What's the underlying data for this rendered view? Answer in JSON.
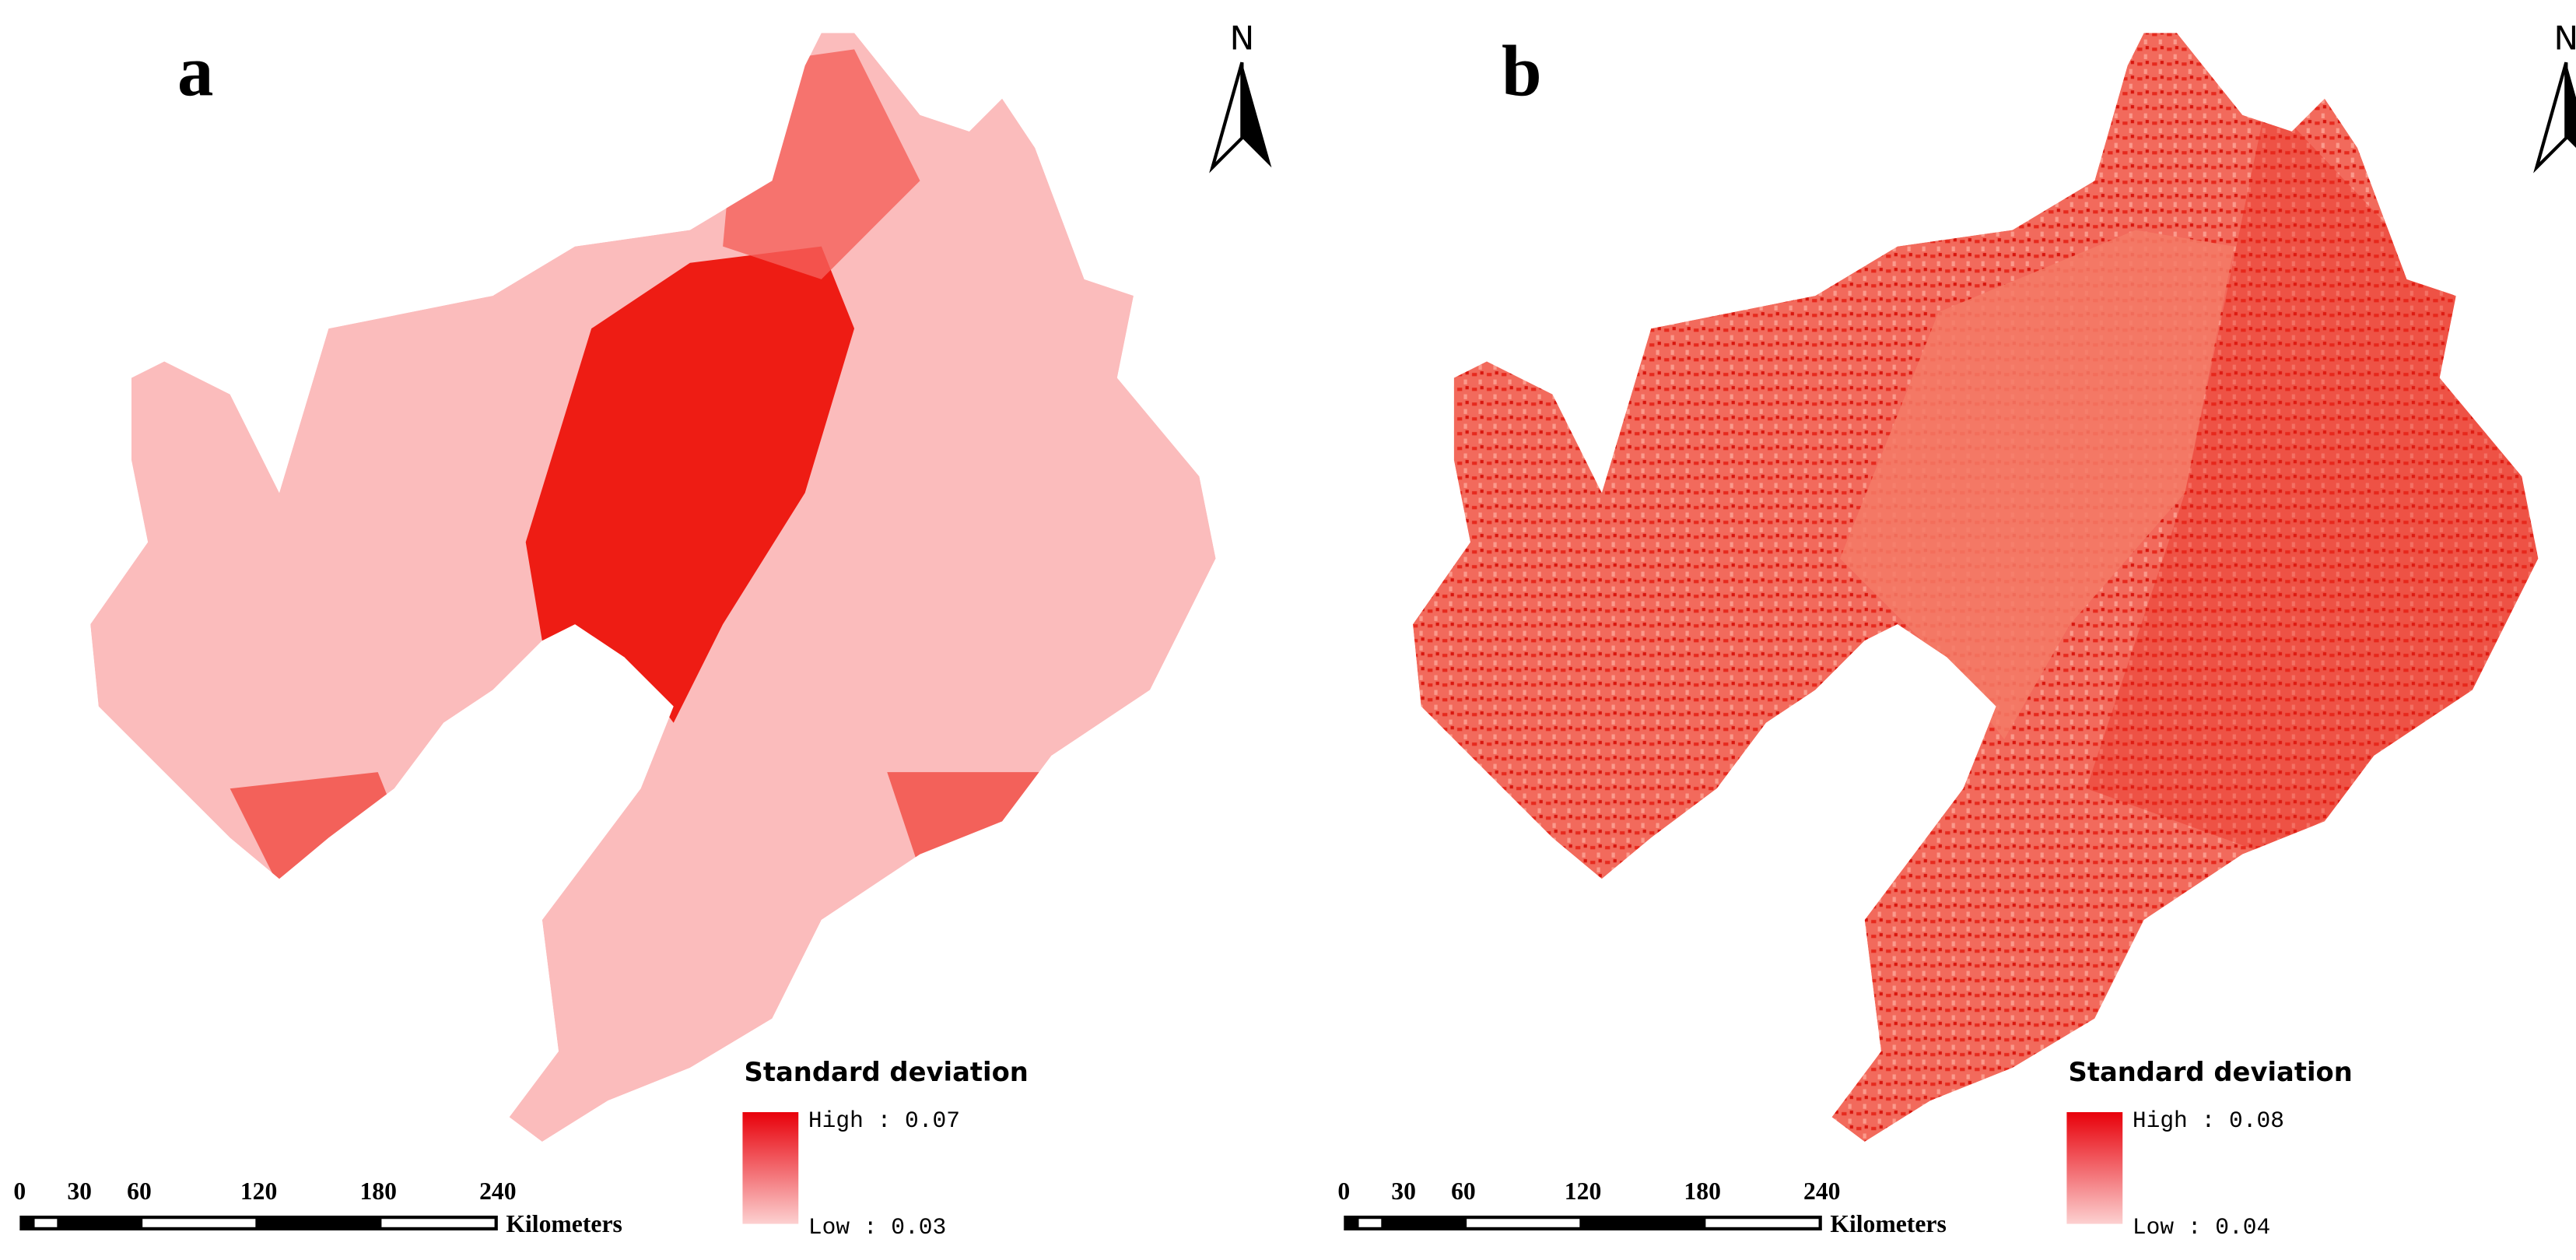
{
  "panels": [
    {
      "label": "a",
      "north": "N",
      "legend_title": "Standard deviation",
      "legend_high": "High : 0.07",
      "legend_low": "Low : 0.03",
      "scale_ticks": [
        0,
        30,
        60,
        120,
        180,
        240
      ],
      "scale_unit": "Kilometers"
    },
    {
      "label": "b",
      "north": "N",
      "legend_title": "Standard deviation",
      "legend_high": "High : 0.08",
      "legend_low": "Low : 0.04",
      "scale_ticks": [
        0,
        30,
        60,
        120,
        180,
        240
      ],
      "scale_unit": "Kilometers"
    }
  ]
}
